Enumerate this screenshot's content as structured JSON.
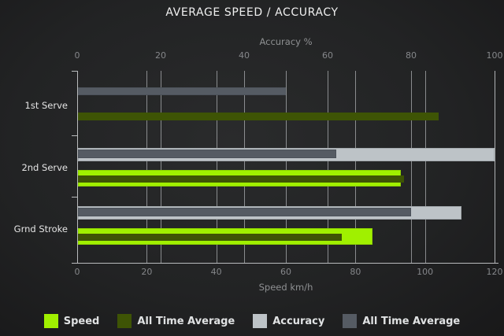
{
  "title": "AVERAGE SPEED / ACCURACY",
  "chart_data": {
    "type": "bar",
    "orientation": "horizontal",
    "title": "AVERAGE SPEED / ACCURACY",
    "categories": [
      "1st Serve",
      "2nd Serve",
      "Grnd Stroke"
    ],
    "axes": {
      "top": {
        "label": "Accuracy %",
        "range": [
          0,
          100
        ],
        "ticks": [
          0,
          20,
          40,
          60,
          80,
          100
        ]
      },
      "bottom": {
        "label": "Speed km/h",
        "range": [
          0,
          120
        ],
        "ticks": [
          0,
          20,
          40,
          60,
          80,
          100,
          120
        ]
      }
    },
    "series": [
      {
        "name": "Speed",
        "axis": "bottom",
        "color": "#a0f000",
        "role": "current",
        "values": [
          null,
          93,
          85
        ]
      },
      {
        "name": "All Time Average",
        "axis": "bottom",
        "color": "#3e5405",
        "role": "average",
        "values": [
          104,
          94,
          76
        ]
      },
      {
        "name": "Accuracy",
        "axis": "top",
        "color": "#bdc3c7",
        "role": "current",
        "values": [
          null,
          100,
          92
        ]
      },
      {
        "name": "All Time Average",
        "axis": "top",
        "color": "#555b63",
        "role": "average",
        "values": [
          50,
          62,
          80
        ]
      }
    ],
    "grid": true,
    "legend_position": "bottom"
  },
  "colors": {
    "background": "#222324",
    "speed_current": "#a0f000",
    "speed_average": "#3e5405",
    "accuracy_current": "#bdc3c7",
    "accuracy_average": "#555b63",
    "gridline": "#c8cbce",
    "text_primary": "#f0f0f0",
    "text_secondary": "#8e9092"
  }
}
